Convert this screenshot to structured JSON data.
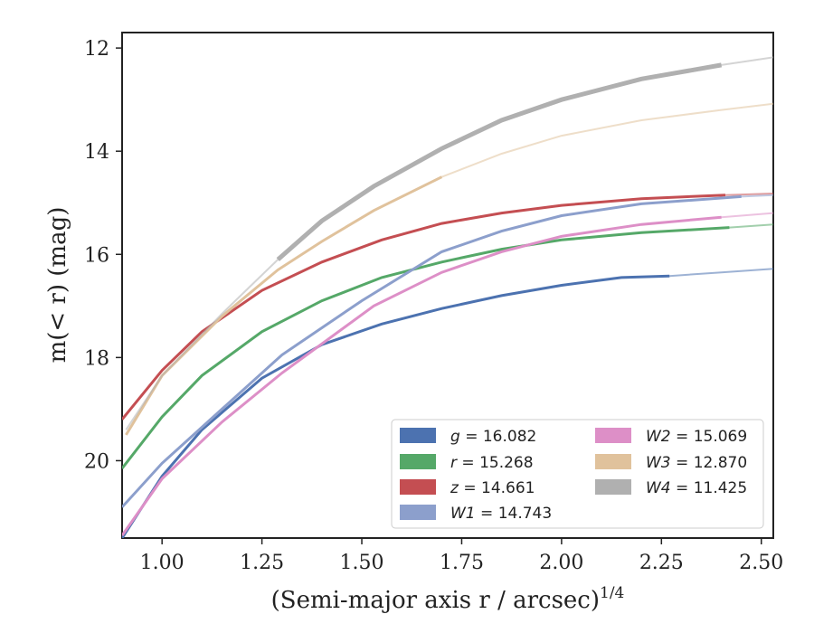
{
  "chart_data": {
    "type": "line",
    "xlabel": "(Semi-major axis r / arcsec)",
    "xlabel_sup": "1/4",
    "ylabel": "m(< r) (mag)",
    "xlim": [
      0.9,
      2.53
    ],
    "ylim": [
      21.5,
      11.7
    ],
    "y_inverted": true,
    "grid": false,
    "legend_placement": "lower-right",
    "x_ticks": [
      "1.00",
      "1.25",
      "1.50",
      "1.75",
      "2.00",
      "2.25",
      "2.50"
    ],
    "y_ticks": [
      "12",
      "14",
      "16",
      "18",
      "20"
    ],
    "series": [
      {
        "name": "g = 16.082",
        "legend_var": "g",
        "legend_val": "16.082",
        "color": "#4c72b0",
        "x": [
          0.9,
          1.0,
          1.1,
          1.25,
          1.4,
          1.55,
          1.7,
          1.85,
          2.0,
          2.15,
          2.27,
          2.4,
          2.53
        ],
        "y": [
          21.5,
          20.3,
          19.4,
          18.4,
          17.75,
          17.35,
          17.05,
          16.8,
          16.6,
          16.45,
          16.42,
          16.35,
          16.28
        ],
        "solid_until": 2.27
      },
      {
        "name": "r = 15.268",
        "legend_var": "r",
        "legend_val": "15.268",
        "color": "#55a868",
        "x": [
          0.9,
          1.0,
          1.1,
          1.25,
          1.4,
          1.55,
          1.7,
          1.85,
          2.0,
          2.2,
          2.42,
          2.53
        ],
        "y": [
          20.15,
          19.15,
          18.35,
          17.5,
          16.9,
          16.45,
          16.15,
          15.9,
          15.72,
          15.58,
          15.48,
          15.42
        ],
        "solid_until": 2.42
      },
      {
        "name": "z = 14.661",
        "legend_var": "z",
        "legend_val": "14.661",
        "color": "#c44e52",
        "x": [
          0.9,
          1.0,
          1.1,
          1.25,
          1.4,
          1.55,
          1.7,
          1.85,
          2.0,
          2.2,
          2.41,
          2.53
        ],
        "y": [
          19.2,
          18.25,
          17.5,
          16.7,
          16.15,
          15.72,
          15.4,
          15.2,
          15.05,
          14.92,
          14.85,
          14.82
        ],
        "solid_until": 2.41
      },
      {
        "name": "W1 = 14.743",
        "legend_var": "W1",
        "legend_val": "14.743",
        "color": "#8c9fcc",
        "x": [
          0.9,
          1.0,
          1.15,
          1.3,
          1.5,
          1.7,
          1.85,
          2.0,
          2.2,
          2.45,
          2.53
        ],
        "y": [
          20.9,
          20.05,
          19.0,
          17.95,
          16.9,
          15.95,
          15.55,
          15.25,
          15.02,
          14.88,
          14.85
        ],
        "solid_until": 2.45
      },
      {
        "name": "W2 = 15.069",
        "legend_var": "W2",
        "legend_val": "15.069",
        "color": "#dd8fc7",
        "x": [
          0.9,
          1.0,
          1.15,
          1.3,
          1.53,
          1.7,
          1.85,
          2.0,
          2.2,
          2.4,
          2.53
        ],
        "y": [
          21.45,
          20.35,
          19.25,
          18.3,
          17.0,
          16.35,
          15.95,
          15.65,
          15.42,
          15.28,
          15.2
        ],
        "solid_until": 2.4
      },
      {
        "name": "W3 = 12.870",
        "legend_var": "W3",
        "legend_val": "12.870",
        "color": "#e0c29c",
        "x": [
          0.91,
          1.0,
          1.15,
          1.29,
          1.4,
          1.53,
          1.7,
          1.85,
          2.0,
          2.2,
          2.4,
          2.53
        ],
        "y": [
          19.5,
          18.35,
          17.2,
          16.3,
          15.75,
          15.15,
          14.5,
          14.05,
          13.7,
          13.4,
          13.2,
          13.08
        ],
        "solid_until": 1.7
      },
      {
        "name": "W4 = 11.425",
        "legend_var": "W4",
        "legend_val": "11.425",
        "color": "#b0b0b0",
        "x": [
          0.91,
          1.0,
          1.15,
          1.29,
          1.4,
          1.53,
          1.7,
          1.85,
          2.0,
          2.2,
          2.4,
          2.53
        ],
        "y": [
          19.4,
          18.35,
          17.15,
          16.1,
          15.35,
          14.68,
          13.95,
          13.4,
          13.0,
          12.6,
          12.33,
          12.18
        ],
        "solid_from": 1.29,
        "solid_until": 2.4
      }
    ]
  }
}
